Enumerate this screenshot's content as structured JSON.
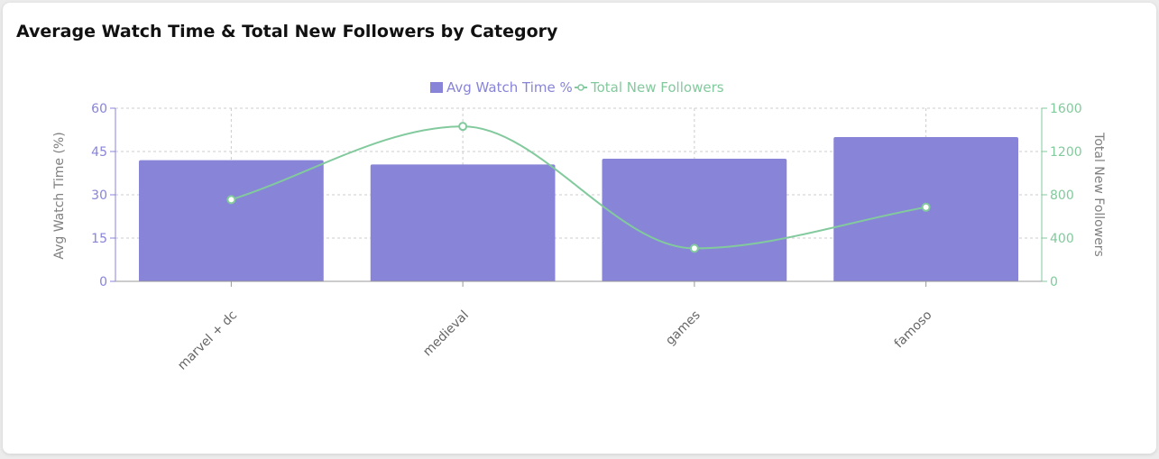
{
  "card": {
    "title": "Average Watch Time & Total New Followers by Category"
  },
  "chart_data": {
    "type": "bar",
    "title": "",
    "categories": [
      "marvel + dc",
      "medieval",
      "games",
      "famoso"
    ],
    "series": [
      {
        "name": "Avg Watch Time %",
        "type": "bar",
        "axis": "left",
        "color": "#8884d8",
        "values": [
          42,
          40.5,
          42.5,
          50
        ]
      },
      {
        "name": "Total New Followers",
        "type": "line",
        "axis": "right",
        "color": "#82ca9d",
        "values": [
          755,
          1432,
          305,
          685
        ]
      }
    ],
    "y_left": {
      "label": "Avg Watch Time (%)",
      "ylim": [
        0,
        60
      ],
      "ticks": [
        0,
        15,
        30,
        45,
        60
      ]
    },
    "y_right": {
      "label": "Total New Followers",
      "ylim": [
        0,
        1600
      ],
      "ticks": [
        0,
        400,
        800,
        1200,
        1600
      ]
    },
    "grid": true,
    "legend": "top-center"
  }
}
